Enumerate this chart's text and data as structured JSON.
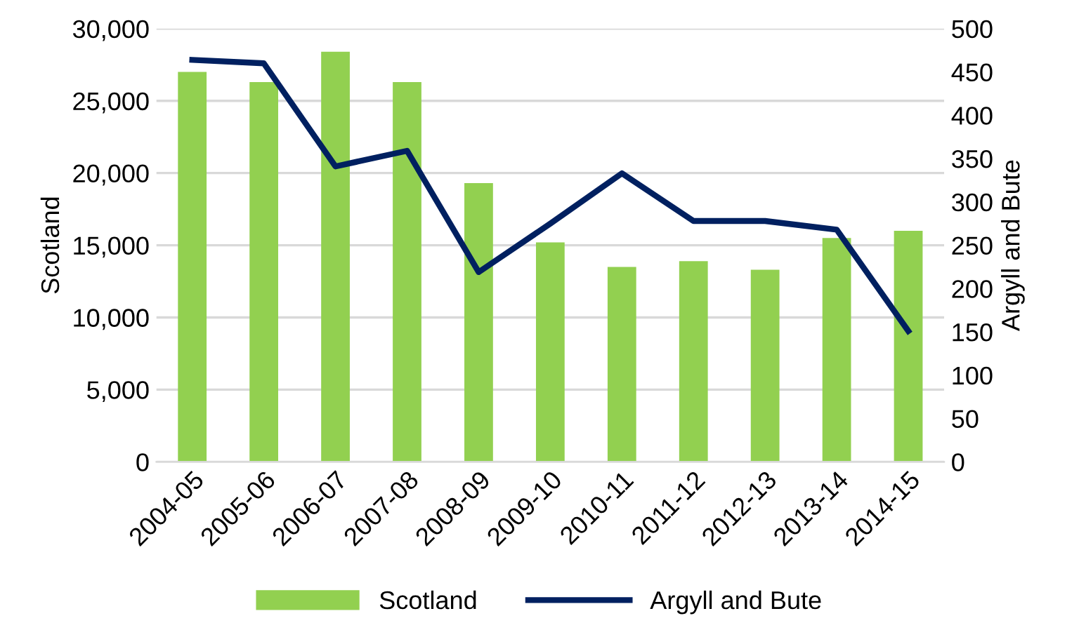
{
  "chart_data": {
    "type": "bar",
    "categories": [
      "2004-05",
      "2005-06",
      "2006-07",
      "2007-08",
      "2008-09",
      "2009-10",
      "2010-11",
      "2011-12",
      "2012-13",
      "2013-14",
      "2014-15"
    ],
    "series": [
      {
        "name": "Scotland",
        "color": "#92d050",
        "values": [
          27000,
          26300,
          28400,
          26300,
          19300,
          15200,
          13500,
          13900,
          13300,
          15500,
          16000
        ]
      },
      {
        "name": "Argyll and Bute",
        "type": "line",
        "axis": "y2",
        "color": "#002060",
        "values": [
          464,
          460,
          341,
          359,
          219,
          275,
          333,
          278,
          278,
          268,
          151
        ]
      }
    ],
    "ylabel": "Scotland",
    "y2label": "Argyll and Bute",
    "ylim": [
      0,
      30000
    ],
    "yticks": [
      {
        "value": 0,
        "label": "0"
      },
      {
        "value": 5000,
        "label": "5,000"
      },
      {
        "value": 10000,
        "label": "10,000"
      },
      {
        "value": 15000,
        "label": "15,000"
      },
      {
        "value": 20000,
        "label": "20,000"
      },
      {
        "value": 25000,
        "label": "25,000"
      },
      {
        "value": 30000,
        "label": "30,000"
      }
    ],
    "y2lim": [
      0,
      500
    ],
    "y2ticks": [
      0,
      50,
      100,
      150,
      200,
      250,
      300,
      350,
      400,
      450,
      500
    ],
    "grid": "y",
    "legend": "bottom",
    "marker": "none",
    "line_style": "solid"
  }
}
